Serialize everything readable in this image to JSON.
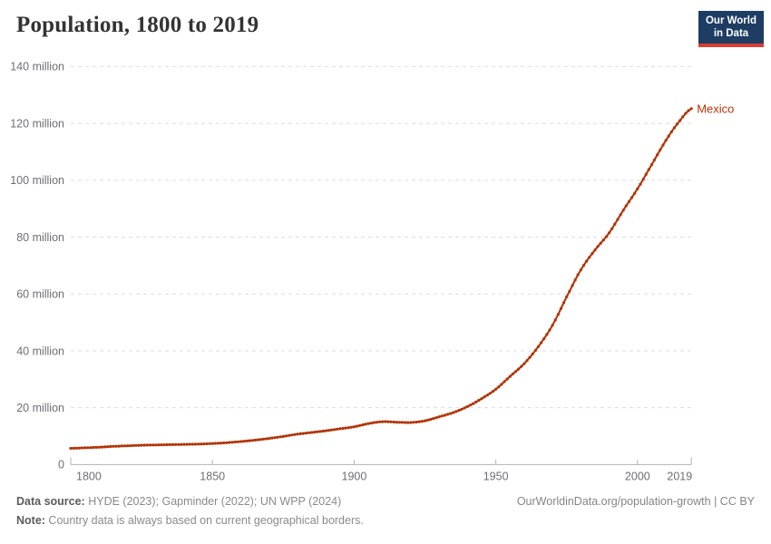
{
  "header": {
    "title": "Population, 1800 to 2019"
  },
  "logo": {
    "line1": "Our World",
    "line2": "in Data",
    "bg_color": "#1d3d63",
    "bar_color": "#d93d32"
  },
  "chart_data": {
    "type": "line",
    "title": "Population, 1800 to 2019",
    "xlabel": "",
    "ylabel": "",
    "xlim": [
      1800,
      2019
    ],
    "ylim": [
      0,
      140
    ],
    "grid": true,
    "grid_color": "#dddddd",
    "axis_color": "#b3b3b3",
    "tick_label_color": "#6e6e73",
    "x_ticks": [
      {
        "value": 1800,
        "label": "1800"
      },
      {
        "value": 1850,
        "label": "1850"
      },
      {
        "value": 1900,
        "label": "1900"
      },
      {
        "value": 1950,
        "label": "1950"
      },
      {
        "value": 2000,
        "label": "2000"
      },
      {
        "value": 2019,
        "label": "2019"
      }
    ],
    "y_ticks": [
      {
        "value": 0,
        "label": "0"
      },
      {
        "value": 20,
        "label": "20 million"
      },
      {
        "value": 40,
        "label": "40 million"
      },
      {
        "value": 60,
        "label": "60 million"
      },
      {
        "value": 80,
        "label": "80 million"
      },
      {
        "value": 100,
        "label": "100 million"
      },
      {
        "value": 120,
        "label": "120 million"
      },
      {
        "value": 140,
        "label": "140 million"
      }
    ],
    "legend_position": "entity-label-at-line-end",
    "series": [
      {
        "name": "Mexico",
        "color": "#b13507",
        "unit_of_values": "million people",
        "points": [
          [
            1800,
            5.7
          ],
          [
            1805,
            5.9
          ],
          [
            1810,
            6.1
          ],
          [
            1815,
            6.4
          ],
          [
            1820,
            6.6
          ],
          [
            1825,
            6.8
          ],
          [
            1830,
            6.9
          ],
          [
            1835,
            7.0
          ],
          [
            1840,
            7.1
          ],
          [
            1845,
            7.2
          ],
          [
            1850,
            7.4
          ],
          [
            1855,
            7.7
          ],
          [
            1860,
            8.1
          ],
          [
            1865,
            8.6
          ],
          [
            1870,
            9.2
          ],
          [
            1875,
            9.9
          ],
          [
            1880,
            10.7
          ],
          [
            1885,
            11.3
          ],
          [
            1890,
            11.9
          ],
          [
            1895,
            12.6
          ],
          [
            1900,
            13.3
          ],
          [
            1905,
            14.4
          ],
          [
            1910,
            15.1
          ],
          [
            1915,
            14.9
          ],
          [
            1920,
            14.8
          ],
          [
            1925,
            15.4
          ],
          [
            1930,
            16.8
          ],
          [
            1935,
            18.3
          ],
          [
            1940,
            20.4
          ],
          [
            1945,
            23.2
          ],
          [
            1950,
            26.5
          ],
          [
            1955,
            31.0
          ],
          [
            1960,
            35.5
          ],
          [
            1965,
            41.5
          ],
          [
            1970,
            49.0
          ],
          [
            1975,
            59.0
          ],
          [
            1980,
            68.5
          ],
          [
            1985,
            75.5
          ],
          [
            1990,
            81.5
          ],
          [
            1995,
            89.5
          ],
          [
            2000,
            97.0
          ],
          [
            2005,
            105.5
          ],
          [
            2010,
            114.0
          ],
          [
            2015,
            121.0
          ],
          [
            2019,
            125.2
          ]
        ]
      }
    ]
  },
  "footer": {
    "source_label": "Data source:",
    "source_text": " HYDE (2023); Gapminder (2022); UN WPP (2024)",
    "note_label": "Note:",
    "note_text": " Country data is always based on current geographical borders.",
    "right_text": "OurWorldinData.org/population-growth | CC BY"
  }
}
